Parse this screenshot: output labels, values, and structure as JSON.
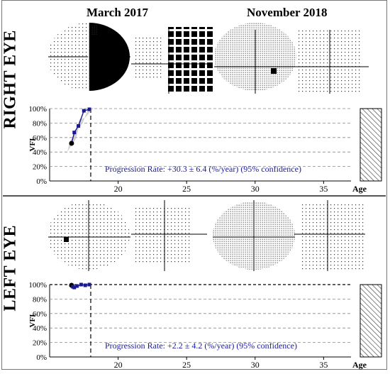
{
  "headers": {
    "date1": "March 2017",
    "date2": "November 2018"
  },
  "right_eye": {
    "label": "RIGHT EYE",
    "progression": "Progression Rate: +30.3 ± 6.4 (%/year) (95% confidence)"
  },
  "left_eye": {
    "label": "LEFT EYE",
    "progression": "Progression Rate: +2.2 ± 4.2 (%/year) (95% confidence)"
  },
  "colors": {
    "series": "#1a1a8c",
    "band": "#c8c8c8",
    "text_blue": "#1a1aa0"
  },
  "chart_data": [
    {
      "type": "line",
      "title": "",
      "ylabel": "VFI",
      "xlabel": "Age",
      "xlim": [
        15,
        37
      ],
      "ylim": [
        0,
        100
      ],
      "yticks": [
        "0%",
        "20%",
        "40%",
        "60%",
        "80%",
        "100%"
      ],
      "xticks": [
        "20",
        "25",
        "30",
        "35"
      ],
      "baseline_age": 18.0,
      "series": [
        {
          "x": [
            16.6,
            16.8,
            17.1,
            17.5,
            17.9
          ],
          "values": [
            52,
            67,
            76,
            97,
            99
          ]
        }
      ]
    },
    {
      "type": "line",
      "title": "",
      "ylabel": "VFI",
      "xlabel": "Age",
      "xlim": [
        15,
        37
      ],
      "ylim": [
        0,
        100
      ],
      "yticks": [
        "0%",
        "20%",
        "40%",
        "60%",
        "80%",
        "100%"
      ],
      "xticks": [
        "20",
        "25",
        "30",
        "35"
      ],
      "baseline_age": 18.0,
      "series": [
        {
          "x": [
            16.6,
            16.7,
            16.8,
            17.0,
            17.3,
            17.6,
            17.9
          ],
          "values": [
            99,
            97,
            96,
            98,
            100,
            99,
            100
          ]
        }
      ]
    }
  ]
}
